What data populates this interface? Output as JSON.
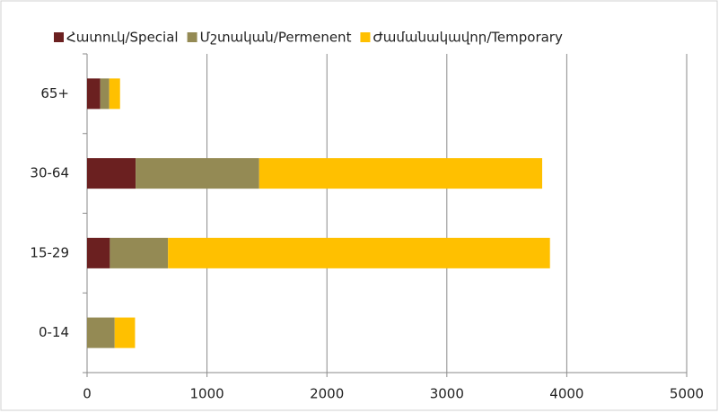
{
  "chart_data": {
    "type": "bar",
    "orientation": "horizontal",
    "stacked": true,
    "categories": [
      "65+",
      "30-64",
      "15-29",
      "0-14"
    ],
    "series": [
      {
        "name": "Հատուկ/Special",
        "color": "#6b2020",
        "values": [
          110,
          405,
          190,
          0
        ]
      },
      {
        "name": "Մշտական/Permenent",
        "color": "#948a54",
        "values": [
          75,
          1030,
          485,
          230
        ]
      },
      {
        "name": "Ժամանակավոր/Temporary",
        "color": "#ffc000",
        "values": [
          90,
          2360,
          3185,
          170
        ]
      }
    ],
    "xlim": [
      0,
      5000
    ],
    "xticks": [
      0,
      1000,
      2000,
      3000,
      4000,
      5000
    ],
    "grid": true,
    "legend": "top"
  }
}
